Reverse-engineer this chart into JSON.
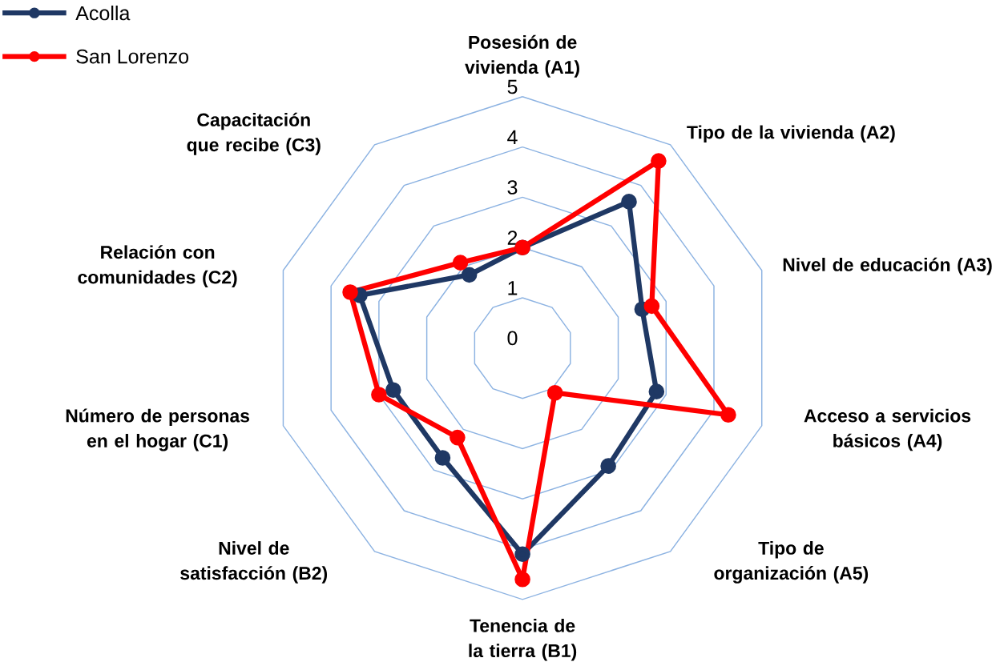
{
  "chart_data": {
    "type": "radar",
    "categories": [
      "Posesión de vivienda (A1)",
      "Tipo de la vivienda (A2)",
      "Nivel de educación (A3)",
      "Acceso a servicios básicos (A4)",
      "Tipo de organización (A5)",
      "Tenencia de la tierra (B1)",
      "Nivel de satisfacción (B2)",
      "Número de personas en el hogar (C1)",
      "Relación con comunidades (C2)",
      "Capacitación que recibe (C3)"
    ],
    "series": [
      {
        "name": "Acolla",
        "color": "#1f3864",
        "values": [
          2,
          3.6,
          2.5,
          2.8,
          2.9,
          4.1,
          2.7,
          2.7,
          3.4,
          1.8
        ]
      },
      {
        "name": "San Lorenzo",
        "color": "#ff0000",
        "values": [
          2,
          4.6,
          2.7,
          4.3,
          1.1,
          4.6,
          2.2,
          3.0,
          3.6,
          2.1
        ]
      }
    ],
    "ylim": [
      0,
      5
    ],
    "yticks": [
      0,
      1,
      2,
      3,
      4,
      5
    ],
    "grid": true,
    "legend": "top left",
    "marker": "circle",
    "line_style": "solid"
  }
}
